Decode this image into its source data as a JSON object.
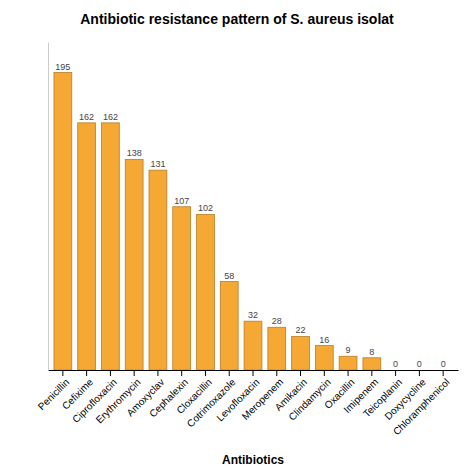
{
  "chart_data": {
    "type": "bar",
    "title": "Antibiotic resistance pattern of S. aureus isolat",
    "xlabel": "Antibiotics",
    "categories": [
      "Penicillin",
      "Cefixime",
      "Ciprofloxacin",
      "Erythromycin",
      "Amoxyclav",
      "Cephalexin",
      "Cloxacillin",
      "Cotrimoxazole",
      "Levofloxacin",
      "Meropenem",
      "Amikacin",
      "Clindamycin",
      "Oxacillin",
      "Imipenem",
      "Teicoplanin",
      "Doxycycline",
      "Chloramphenicol"
    ],
    "values": [
      195,
      162,
      162,
      138,
      131,
      107,
      102,
      58,
      32,
      28,
      22,
      16,
      9,
      8,
      0,
      0,
      0
    ],
    "color": "#F5A833",
    "ylim": [
      0,
      215
    ],
    "data_labels": true,
    "tick_labels": "x",
    "grid": false
  }
}
